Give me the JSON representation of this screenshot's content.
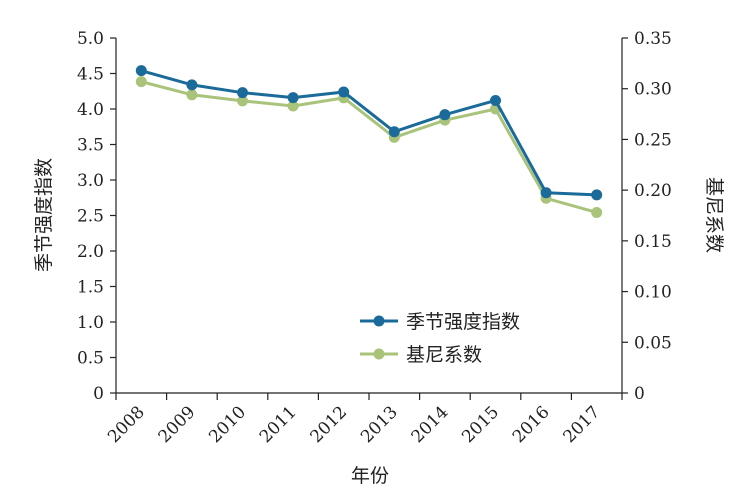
{
  "chart_data": {
    "type": "line",
    "categories": [
      "2008",
      "2009",
      "2010",
      "2011",
      "2012",
      "2013",
      "2014",
      "2015",
      "2016",
      "2017"
    ],
    "xlabel": "年份",
    "ylabel_left": "季节强度指数",
    "ylabel_right": "基尼系数",
    "ylim_left": [
      0,
      5.0
    ],
    "ylim_right": [
      0,
      0.35
    ],
    "yticks_left": [
      "0",
      "0.5",
      "1.0",
      "1.5",
      "2.0",
      "2.5",
      "3.0",
      "3.5",
      "4.0",
      "4.5",
      "5.0"
    ],
    "yticks_right": [
      "0",
      "0.05",
      "0.10",
      "0.15",
      "0.20",
      "0.25",
      "0.30",
      "0.35"
    ],
    "grid": false,
    "legend_position": "lower-center",
    "series": [
      {
        "name": "季节强度指数",
        "axis": "left",
        "color": "#1a6a9a",
        "values": [
          4.54,
          4.34,
          4.23,
          4.16,
          4.24,
          3.68,
          3.92,
          4.12,
          2.82,
          2.79
        ]
      },
      {
        "name": "基尼系数",
        "axis": "right",
        "color": "#a9c47a",
        "values": [
          0.307,
          0.294,
          0.288,
          0.283,
          0.291,
          0.252,
          0.269,
          0.28,
          0.192,
          0.178
        ]
      }
    ]
  }
}
